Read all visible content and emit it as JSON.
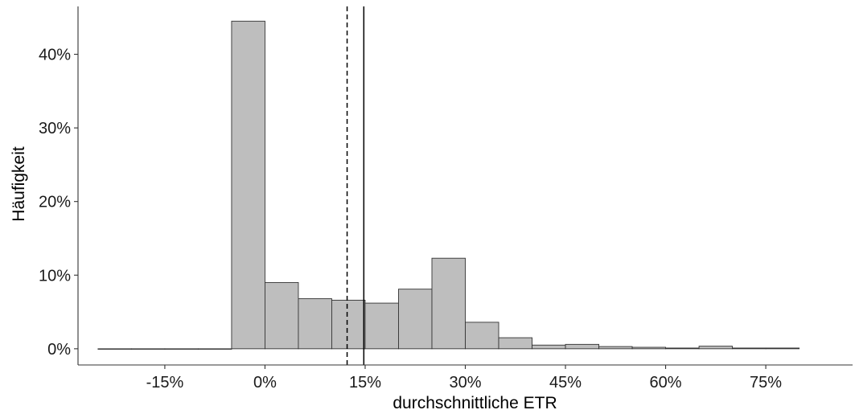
{
  "chart_data": {
    "type": "bar",
    "title": "",
    "xlabel": "durchschnittliche ETR",
    "ylabel": "Häufigkeit",
    "x_ticks": [
      {
        "value": -15,
        "label": "-15%"
      },
      {
        "value": 0,
        "label": "0%"
      },
      {
        "value": 15,
        "label": "15%"
      },
      {
        "value": 30,
        "label": "30%"
      },
      {
        "value": 45,
        "label": "45%"
      },
      {
        "value": 60,
        "label": "60%"
      },
      {
        "value": 75,
        "label": "75%"
      }
    ],
    "y_ticks": [
      {
        "value": 0,
        "label": "0%"
      },
      {
        "value": 10,
        "label": "10%"
      },
      {
        "value": 20,
        "label": "20%"
      },
      {
        "value": 30,
        "label": "30%"
      },
      {
        "value": 40,
        "label": "40%"
      }
    ],
    "xlim": [
      -28,
      88
    ],
    "ylim": [
      -2.2,
      46.5
    ],
    "bin_width": 5,
    "bins": [
      {
        "x_start": -25,
        "x_end": -20,
        "value": 0.0
      },
      {
        "x_start": -20,
        "x_end": -15,
        "value": 0.0
      },
      {
        "x_start": -15,
        "x_end": -10,
        "value": 0.0
      },
      {
        "x_start": -10,
        "x_end": -5,
        "value": 0.0
      },
      {
        "x_start": -5,
        "x_end": 0,
        "value": 44.5
      },
      {
        "x_start": 0,
        "x_end": 5,
        "value": 9.0
      },
      {
        "x_start": 5,
        "x_end": 10,
        "value": 6.8
      },
      {
        "x_start": 10,
        "x_end": 15,
        "value": 6.6
      },
      {
        "x_start": 15,
        "x_end": 20,
        "value": 6.2
      },
      {
        "x_start": 20,
        "x_end": 25,
        "value": 8.1
      },
      {
        "x_start": 25,
        "x_end": 30,
        "value": 12.3
      },
      {
        "x_start": 30,
        "x_end": 35,
        "value": 3.6
      },
      {
        "x_start": 35,
        "x_end": 40,
        "value": 1.5
      },
      {
        "x_start": 40,
        "x_end": 45,
        "value": 0.5
      },
      {
        "x_start": 45,
        "x_end": 50,
        "value": 0.6
      },
      {
        "x_start": 50,
        "x_end": 55,
        "value": 0.3
      },
      {
        "x_start": 55,
        "x_end": 60,
        "value": 0.2
      },
      {
        "x_start": 60,
        "x_end": 65,
        "value": 0.1
      },
      {
        "x_start": 65,
        "x_end": 70,
        "value": 0.35
      },
      {
        "x_start": 70,
        "x_end": 75,
        "value": 0.1
      },
      {
        "x_start": 75,
        "x_end": 80,
        "value": 0.1
      }
    ],
    "reference_lines": [
      {
        "value": 12.3,
        "style": "dashed",
        "color": "#000000"
      },
      {
        "value": 14.8,
        "style": "solid",
        "color": "#000000"
      }
    ],
    "bar_fill": "#bebebe",
    "bar_stroke": "#333333",
    "grid": false,
    "legend": "none"
  }
}
